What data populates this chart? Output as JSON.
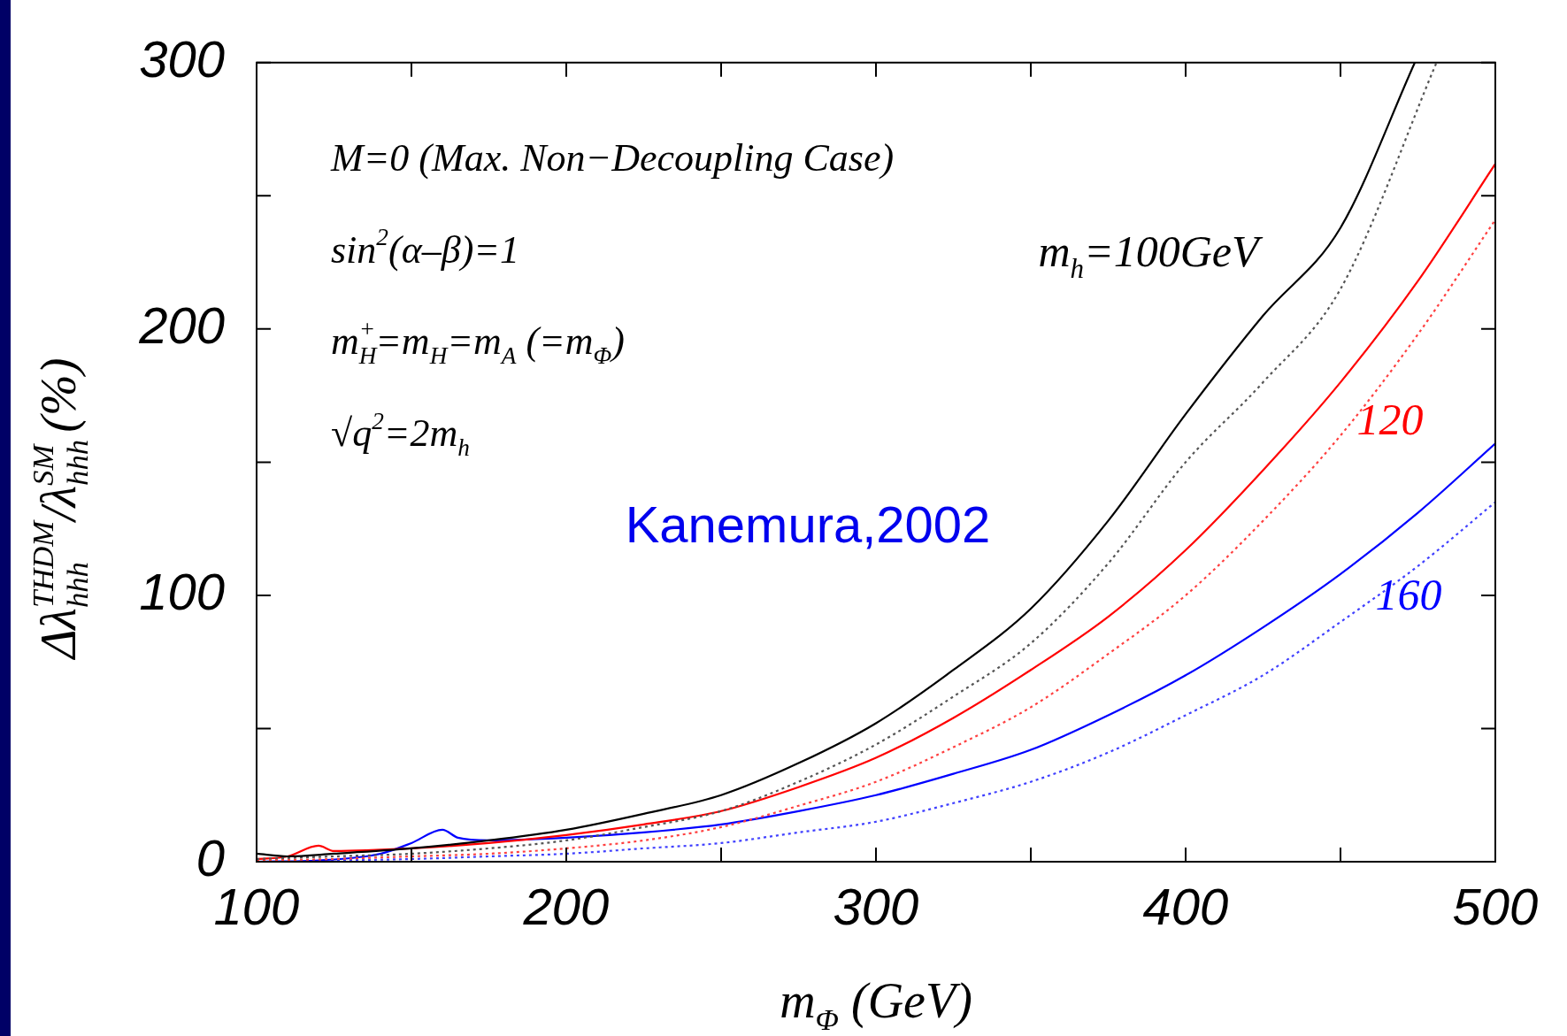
{
  "chart_data": {
    "type": "line",
    "xlabel": "m$_{Φ}$ (GeV)",
    "ylabel": "Δλ$_{hhh}$$^{THDM}$/λ$_{hhh}$$^{SM}$ (%)",
    "xlim": [
      100,
      500
    ],
    "ylim": [
      0,
      300
    ],
    "xticks": [
      100,
      {
        "value": 150,
        "label": null
      },
      200,
      {
        "value": 250,
        "label": null
      },
      300,
      {
        "value": 350,
        "label": null
      },
      400,
      {
        "value": 450,
        "label": null
      },
      500
    ],
    "yticks": [
      0,
      {
        "value": 50,
        "label": null
      },
      100,
      {
        "value": 150,
        "label": null
      },
      200,
      {
        "value": 250,
        "label": null
      },
      300
    ],
    "marker": "none",
    "legend": false,
    "series": [
      {
        "color": "#000000",
        "line_style": "solid",
        "x": [
          100,
          110,
          125,
          150,
          175,
          200,
          225,
          250,
          275,
          300,
          325,
          350,
          375,
          400,
          425,
          450,
          474
        ],
        "values": [
          3,
          2,
          3,
          5,
          8,
          12,
          18,
          25,
          37,
          52,
          72,
          95,
          128,
          168,
          205,
          238,
          300
        ]
      },
      {
        "color": "#555555",
        "line_style": "dotted",
        "x": [
          100,
          125,
          150,
          175,
          200,
          225,
          250,
          275,
          300,
          325,
          350,
          375,
          400,
          425,
          450,
          481
        ],
        "values": [
          1,
          2,
          3,
          5,
          8,
          13,
          19,
          30,
          44,
          62,
          82,
          112,
          150,
          180,
          215,
          300
        ]
      },
      {
        "color": "#ff0000",
        "line_style": "solid",
        "x": [
          100,
          110,
          120,
          125,
          150,
          175,
          200,
          225,
          250,
          275,
          300,
          325,
          350,
          375,
          400,
          425,
          450,
          475,
          500
        ],
        "values": [
          1,
          2,
          6,
          4,
          5,
          7,
          10,
          14,
          19,
          28,
          39,
          54,
          72,
          92,
          117,
          147,
          180,
          218,
          262
        ]
      },
      {
        "color": "#ff4040",
        "line_style": "dotted",
        "x": [
          100,
          125,
          150,
          175,
          200,
          225,
          250,
          275,
          300,
          325,
          350,
          375,
          400,
          425,
          450,
          475,
          500
        ],
        "values": [
          0.5,
          1,
          2,
          3,
          5,
          8,
          13,
          21,
          30,
          43,
          58,
          78,
          100,
          128,
          160,
          198,
          241
        ]
      },
      {
        "color": "#0000ff",
        "line_style": "solid",
        "x": [
          100,
          120,
          140,
          150,
          160,
          165,
          175,
          200,
          225,
          250,
          275,
          300,
          325,
          350,
          375,
          400,
          425,
          450,
          475,
          500
        ],
        "values": [
          0,
          0.5,
          3,
          7,
          12,
          9,
          8,
          9,
          11,
          14,
          19,
          25,
          33,
          42,
          55,
          70,
          88,
          108,
          131,
          157
        ]
      },
      {
        "color": "#4040ff",
        "line_style": "dotted",
        "x": [
          100,
          125,
          150,
          175,
          200,
          225,
          250,
          275,
          300,
          325,
          350,
          375,
          400,
          425,
          450,
          475,
          500
        ],
        "values": [
          0,
          0.5,
          1,
          2,
          3,
          5,
          7,
          11,
          15,
          22,
          30,
          41,
          55,
          70,
          90,
          111,
          135
        ]
      }
    ],
    "annotations": [
      "M=0 (Max. Non−Decoupling Case)",
      "sin$^{2}$(α–β)=1",
      "m$_{H}$$^{+}$=m$_{H}$=m$_{A}$ (=m$_{Φ}$)",
      "√q$^{2}$=2m$_{h}$",
      "m$_{h}$=100GeV",
      "120",
      "160",
      "Kanemura,2002"
    ]
  }
}
